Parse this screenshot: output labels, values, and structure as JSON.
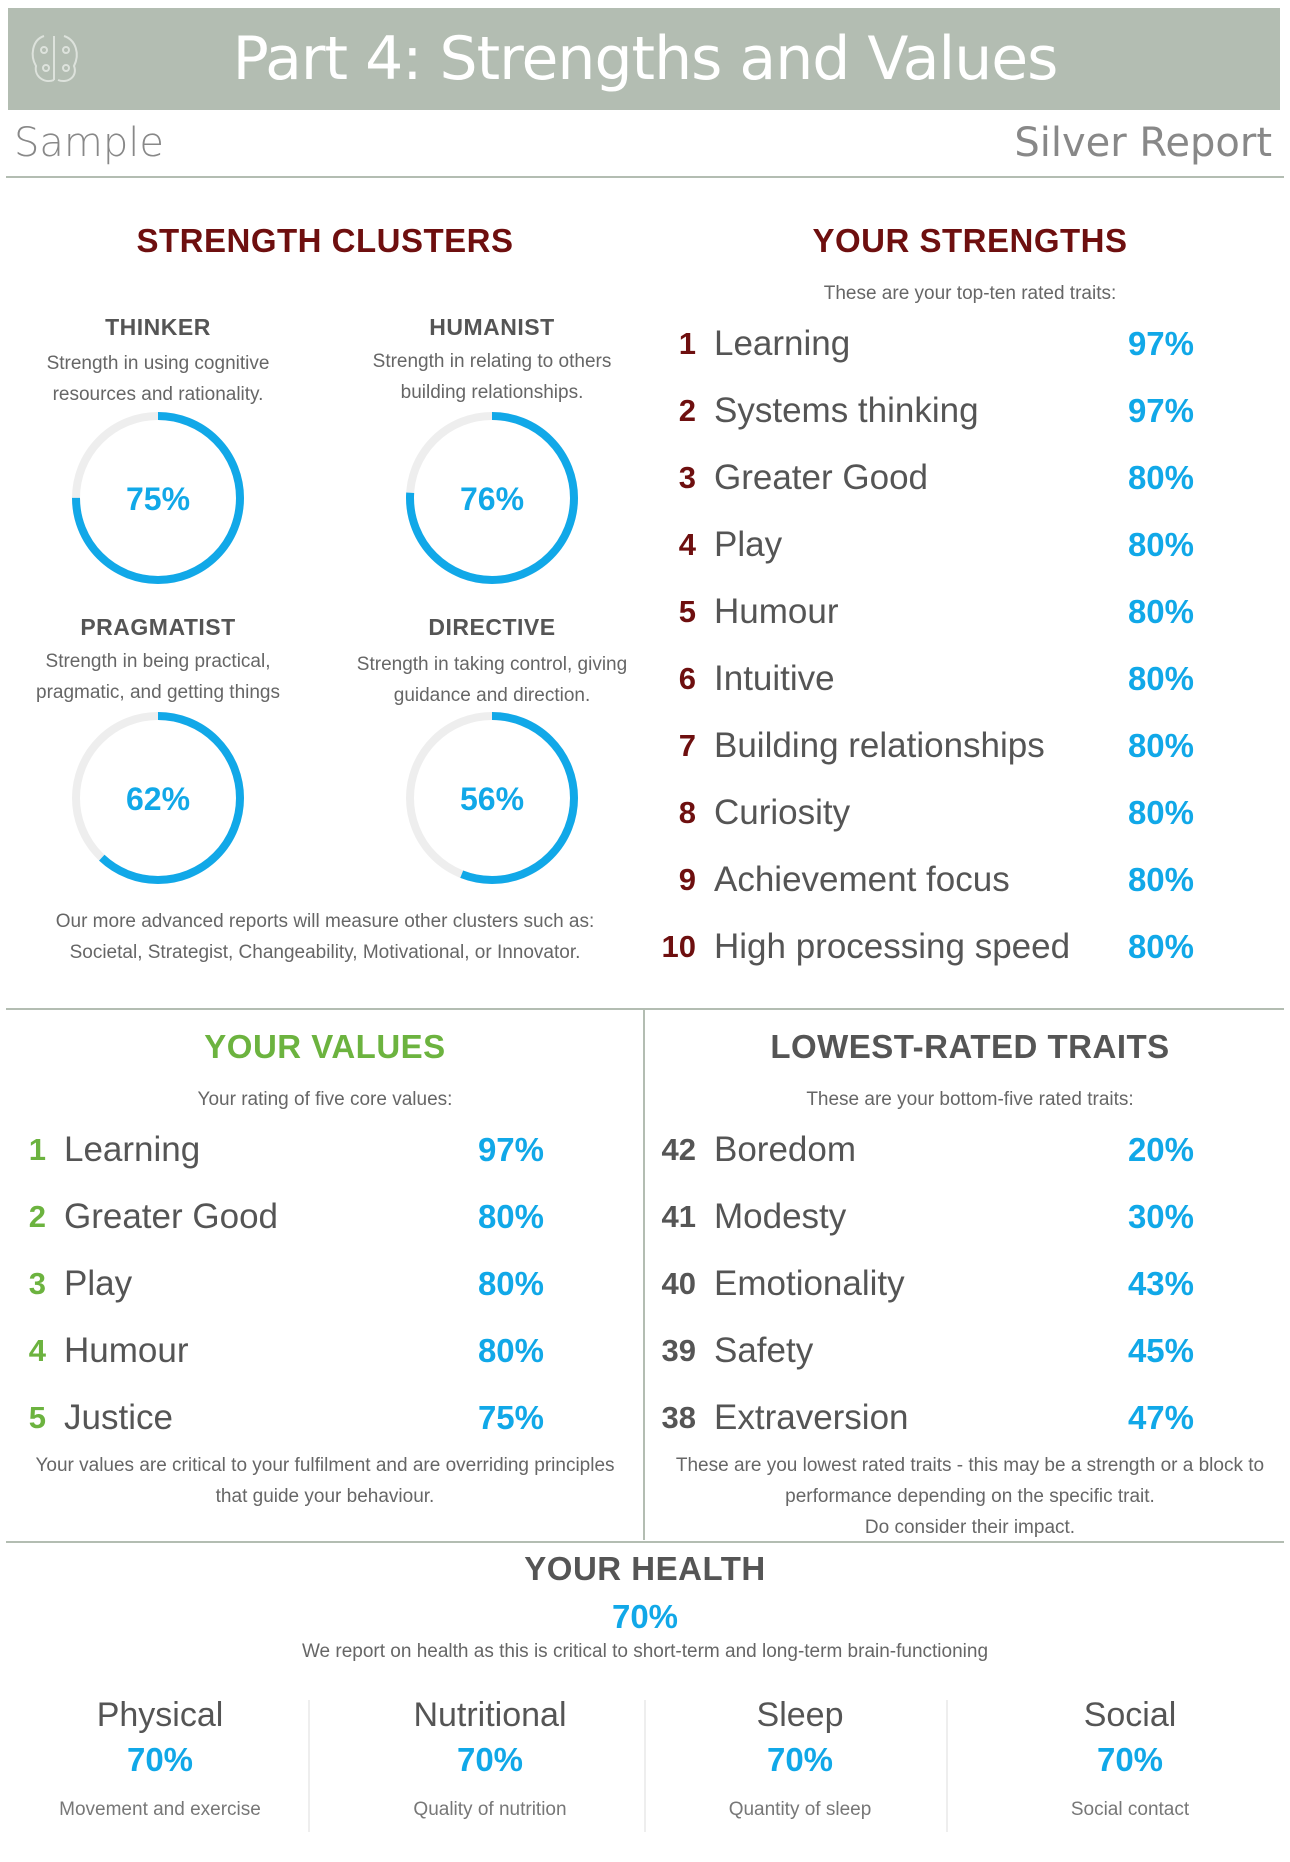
{
  "header": {
    "title": "Part 4: Strengths and Values",
    "subject": "Sample",
    "report": "Silver Report"
  },
  "clusters": {
    "title": "STRENGTH CLUSTERS",
    "items": [
      {
        "name": "THINKER",
        "desc1": "Strength in using cognitive",
        "desc2": "resources and rationality.",
        "value": 75,
        "label": "75%"
      },
      {
        "name": "HUMANIST",
        "desc1": "Strength in relating to others",
        "desc2": "building relationships.",
        "value": 76,
        "label": "76%"
      },
      {
        "name": "PRAGMATIST",
        "desc1": "Strength in being practical,",
        "desc2": "pragmatic, and getting things",
        "value": 62,
        "label": "62%"
      },
      {
        "name": "DIRECTIVE",
        "desc1": "Strength in taking control, giving",
        "desc2": "guidance and direction.",
        "value": 56,
        "label": "56%"
      }
    ],
    "note1": "Our more advanced reports will measure other clusters such as:",
    "note2": "Societal, Strategist, Changeability, Motivational, or Innovator."
  },
  "strengths": {
    "title": "YOUR STRENGTHS",
    "subtitle": "These are your top-ten rated traits:",
    "items": [
      {
        "rank": "1",
        "trait": "Learning",
        "pct": "97%"
      },
      {
        "rank": "2",
        "trait": "Systems thinking",
        "pct": "97%"
      },
      {
        "rank": "3",
        "trait": "Greater Good",
        "pct": "80%"
      },
      {
        "rank": "4",
        "trait": "Play",
        "pct": "80%"
      },
      {
        "rank": "5",
        "trait": "Humour",
        "pct": "80%"
      },
      {
        "rank": "6",
        "trait": "Intuitive",
        "pct": "80%"
      },
      {
        "rank": "7",
        "trait": "Building relationships",
        "pct": "80%"
      },
      {
        "rank": "8",
        "trait": "Curiosity",
        "pct": "80%"
      },
      {
        "rank": "9",
        "trait": "Achievement focus",
        "pct": "80%"
      },
      {
        "rank": "10",
        "trait": "High processing speed",
        "pct": "80%"
      }
    ]
  },
  "values": {
    "title": "YOUR VALUES",
    "subtitle": "Your rating of five core values:",
    "items": [
      {
        "rank": "1",
        "trait": "Learning",
        "pct": "97%"
      },
      {
        "rank": "2",
        "trait": "Greater Good",
        "pct": "80%"
      },
      {
        "rank": "3",
        "trait": "Play",
        "pct": "80%"
      },
      {
        "rank": "4",
        "trait": "Humour",
        "pct": "80%"
      },
      {
        "rank": "5",
        "trait": "Justice",
        "pct": "75%"
      }
    ],
    "note1": "Your values are critical to your fulfilment and are overriding principles",
    "note2": "that guide your behaviour."
  },
  "lowest": {
    "title": "LOWEST-RATED TRAITS",
    "subtitle": "These are your bottom-five rated traits:",
    "items": [
      {
        "rank": "42",
        "trait": "Boredom",
        "pct": "20%"
      },
      {
        "rank": "41",
        "trait": "Modesty",
        "pct": "30%"
      },
      {
        "rank": "40",
        "trait": "Emotionality",
        "pct": "43%"
      },
      {
        "rank": "39",
        "trait": "Safety",
        "pct": "45%"
      },
      {
        "rank": "38",
        "trait": "Extraversion",
        "pct": "47%"
      }
    ],
    "note1": "These are you lowest rated traits - this may be a strength or a block to",
    "note2": "performance depending on the specific trait.",
    "note3": "Do consider their impact."
  },
  "health": {
    "title": "YOUR HEALTH",
    "overall": "70%",
    "subtitle": "We report on health as this is critical to short-term and long-term brain-functioning",
    "items": [
      {
        "label": "Physical",
        "pct": "70%",
        "desc": "Movement and exercise"
      },
      {
        "label": "Nutritional",
        "pct": "70%",
        "desc": "Quality of nutrition"
      },
      {
        "label": "Sleep",
        "pct": "70%",
        "desc": "Quantity of sleep"
      },
      {
        "label": "Social",
        "pct": "70%",
        "desc": "Social contact"
      }
    ]
  },
  "colors": {
    "banner": "#b3bdb2",
    "maroon": "#6e0f0f",
    "green": "#6cb33f",
    "blue": "#11a8e8",
    "ring_track": "#eeeeee"
  }
}
